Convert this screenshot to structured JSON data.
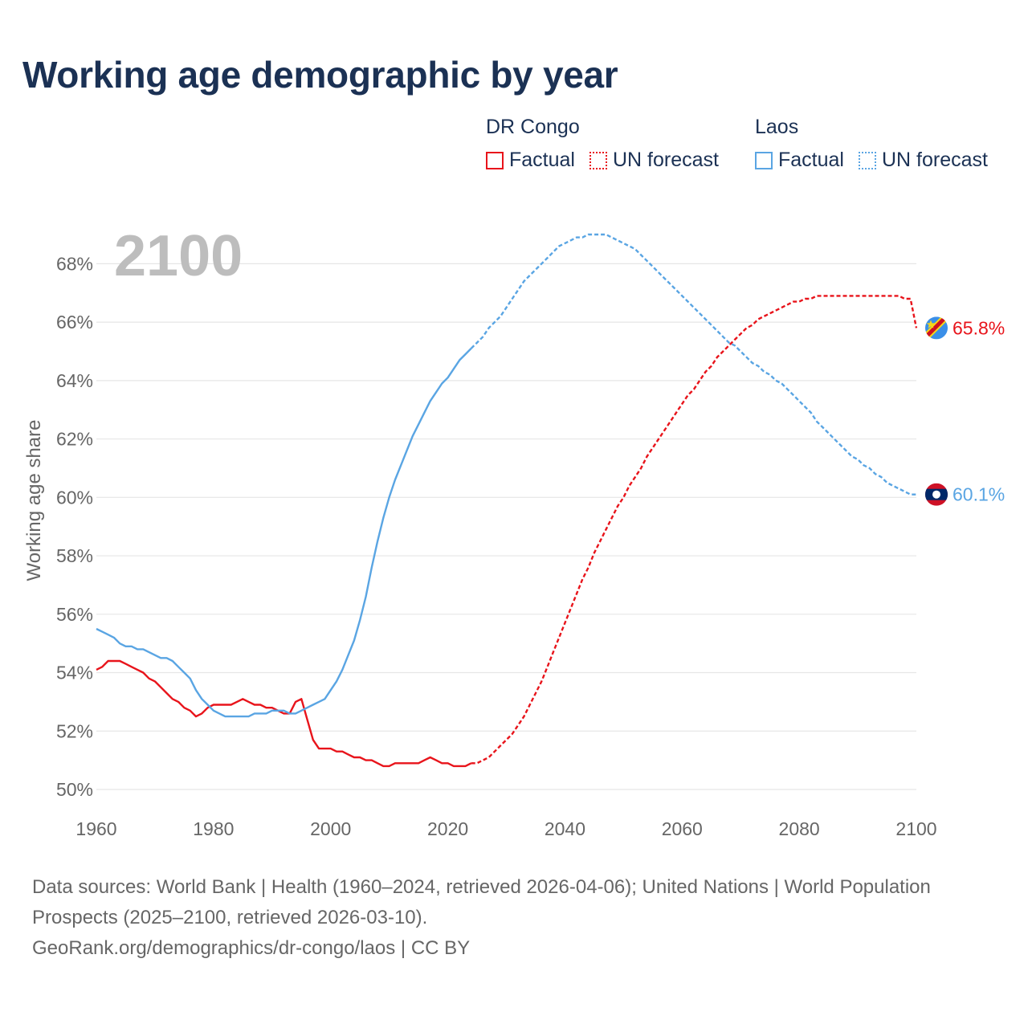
{
  "title": "Working age demographic by year",
  "year_overlay": "2100",
  "legend": {
    "groups": [
      {
        "name": "DR Congo",
        "factual_label": "Factual",
        "forecast_label": "UN forecast",
        "color": "#e8141b"
      },
      {
        "name": "Laos",
        "factual_label": "Factual",
        "forecast_label": "UN forecast",
        "color": "#5aa5e3"
      }
    ]
  },
  "footer": {
    "sources": "Data sources: World Bank | Health (1960–2024, retrieved 2026-04-06); United Nations | World Population Prospects (2025–2100, retrieved 2026-03-10).",
    "credit": "GeoRank.org/demographics/dr-congo/laos | CC BY"
  },
  "chart_data": {
    "type": "line",
    "title": "Working age demographic by year",
    "xlabel": "",
    "ylabel": "Working age share",
    "xlim": [
      1960,
      2100
    ],
    "ylim": [
      50,
      69
    ],
    "x_ticks": [
      1960,
      1980,
      2000,
      2020,
      2040,
      2060,
      2080,
      2100
    ],
    "y_ticks": [
      50,
      52,
      54,
      56,
      58,
      60,
      62,
      64,
      66,
      68
    ],
    "y_tick_suffix": "%",
    "grid": true,
    "factual_end_year": 2024,
    "series": [
      {
        "name": "DR Congo",
        "color": "#e8141b",
        "end_label": "65.8%",
        "points": [
          [
            1960,
            54.1
          ],
          [
            1961,
            54.2
          ],
          [
            1962,
            54.4
          ],
          [
            1963,
            54.4
          ],
          [
            1964,
            54.4
          ],
          [
            1965,
            54.3
          ],
          [
            1966,
            54.2
          ],
          [
            1967,
            54.1
          ],
          [
            1968,
            54.0
          ],
          [
            1969,
            53.8
          ],
          [
            1970,
            53.7
          ],
          [
            1971,
            53.5
          ],
          [
            1972,
            53.3
          ],
          [
            1973,
            53.1
          ],
          [
            1974,
            53.0
          ],
          [
            1975,
            52.8
          ],
          [
            1976,
            52.7
          ],
          [
            1977,
            52.5
          ],
          [
            1978,
            52.6
          ],
          [
            1979,
            52.8
          ],
          [
            1980,
            52.9
          ],
          [
            1981,
            52.9
          ],
          [
            1982,
            52.9
          ],
          [
            1983,
            52.9
          ],
          [
            1984,
            53.0
          ],
          [
            1985,
            53.1
          ],
          [
            1986,
            53.0
          ],
          [
            1987,
            52.9
          ],
          [
            1988,
            52.9
          ],
          [
            1989,
            52.8
          ],
          [
            1990,
            52.8
          ],
          [
            1991,
            52.7
          ],
          [
            1992,
            52.6
          ],
          [
            1993,
            52.6
          ],
          [
            1994,
            53.0
          ],
          [
            1995,
            53.1
          ],
          [
            1996,
            52.4
          ],
          [
            1997,
            51.7
          ],
          [
            1998,
            51.4
          ],
          [
            1999,
            51.4
          ],
          [
            2000,
            51.4
          ],
          [
            2001,
            51.3
          ],
          [
            2002,
            51.3
          ],
          [
            2003,
            51.2
          ],
          [
            2004,
            51.1
          ],
          [
            2005,
            51.1
          ],
          [
            2006,
            51.0
          ],
          [
            2007,
            51.0
          ],
          [
            2008,
            50.9
          ],
          [
            2009,
            50.8
          ],
          [
            2010,
            50.8
          ],
          [
            2011,
            50.9
          ],
          [
            2012,
            50.9
          ],
          [
            2013,
            50.9
          ],
          [
            2014,
            50.9
          ],
          [
            2015,
            50.9
          ],
          [
            2016,
            51.0
          ],
          [
            2017,
            51.1
          ],
          [
            2018,
            51.0
          ],
          [
            2019,
            50.9
          ],
          [
            2020,
            50.9
          ],
          [
            2021,
            50.8
          ],
          [
            2022,
            50.8
          ],
          [
            2023,
            50.8
          ],
          [
            2024,
            50.9
          ],
          [
            2025,
            50.9
          ],
          [
            2026,
            51.0
          ],
          [
            2027,
            51.1
          ],
          [
            2028,
            51.3
          ],
          [
            2029,
            51.5
          ],
          [
            2030,
            51.7
          ],
          [
            2031,
            51.9
          ],
          [
            2032,
            52.2
          ],
          [
            2033,
            52.5
          ],
          [
            2034,
            52.9
          ],
          [
            2035,
            53.3
          ],
          [
            2036,
            53.7
          ],
          [
            2037,
            54.2
          ],
          [
            2038,
            54.7
          ],
          [
            2039,
            55.2
          ],
          [
            2040,
            55.7
          ],
          [
            2041,
            56.2
          ],
          [
            2042,
            56.7
          ],
          [
            2043,
            57.2
          ],
          [
            2044,
            57.6
          ],
          [
            2045,
            58.1
          ],
          [
            2046,
            58.5
          ],
          [
            2047,
            58.9
          ],
          [
            2048,
            59.3
          ],
          [
            2049,
            59.7
          ],
          [
            2050,
            60.0
          ],
          [
            2051,
            60.4
          ],
          [
            2052,
            60.7
          ],
          [
            2053,
            61.0
          ],
          [
            2054,
            61.4
          ],
          [
            2055,
            61.7
          ],
          [
            2056,
            62.0
          ],
          [
            2057,
            62.3
          ],
          [
            2058,
            62.6
          ],
          [
            2059,
            62.9
          ],
          [
            2060,
            63.2
          ],
          [
            2061,
            63.5
          ],
          [
            2062,
            63.7
          ],
          [
            2063,
            64.0
          ],
          [
            2064,
            64.3
          ],
          [
            2065,
            64.5
          ],
          [
            2066,
            64.8
          ],
          [
            2067,
            65.0
          ],
          [
            2068,
            65.2
          ],
          [
            2069,
            65.4
          ],
          [
            2070,
            65.6
          ],
          [
            2071,
            65.8
          ],
          [
            2072,
            65.9
          ],
          [
            2073,
            66.1
          ],
          [
            2074,
            66.2
          ],
          [
            2075,
            66.3
          ],
          [
            2076,
            66.4
          ],
          [
            2077,
            66.5
          ],
          [
            2078,
            66.6
          ],
          [
            2079,
            66.7
          ],
          [
            2080,
            66.7
          ],
          [
            2081,
            66.8
          ],
          [
            2082,
            66.8
          ],
          [
            2083,
            66.9
          ],
          [
            2084,
            66.9
          ],
          [
            2085,
            66.9
          ],
          [
            2086,
            66.9
          ],
          [
            2087,
            66.9
          ],
          [
            2088,
            66.9
          ],
          [
            2089,
            66.9
          ],
          [
            2090,
            66.9
          ],
          [
            2091,
            66.9
          ],
          [
            2092,
            66.9
          ],
          [
            2093,
            66.9
          ],
          [
            2094,
            66.9
          ],
          [
            2095,
            66.9
          ],
          [
            2096,
            66.9
          ],
          [
            2097,
            66.9
          ],
          [
            2098,
            66.8
          ],
          [
            2099,
            66.8
          ],
          [
            2100,
            65.8
          ]
        ]
      },
      {
        "name": "Laos",
        "color": "#5aa5e3",
        "end_label": "60.1%",
        "points": [
          [
            1960,
            55.5
          ],
          [
            1961,
            55.4
          ],
          [
            1962,
            55.3
          ],
          [
            1963,
            55.2
          ],
          [
            1964,
            55.0
          ],
          [
            1965,
            54.9
          ],
          [
            1966,
            54.9
          ],
          [
            1967,
            54.8
          ],
          [
            1968,
            54.8
          ],
          [
            1969,
            54.7
          ],
          [
            1970,
            54.6
          ],
          [
            1971,
            54.5
          ],
          [
            1972,
            54.5
          ],
          [
            1973,
            54.4
          ],
          [
            1974,
            54.2
          ],
          [
            1975,
            54.0
          ],
          [
            1976,
            53.8
          ],
          [
            1977,
            53.4
          ],
          [
            1978,
            53.1
          ],
          [
            1979,
            52.9
          ],
          [
            1980,
            52.7
          ],
          [
            1981,
            52.6
          ],
          [
            1982,
            52.5
          ],
          [
            1983,
            52.5
          ],
          [
            1984,
            52.5
          ],
          [
            1985,
            52.5
          ],
          [
            1986,
            52.5
          ],
          [
            1987,
            52.6
          ],
          [
            1988,
            52.6
          ],
          [
            1989,
            52.6
          ],
          [
            1990,
            52.7
          ],
          [
            1991,
            52.7
          ],
          [
            1992,
            52.7
          ],
          [
            1993,
            52.6
          ],
          [
            1994,
            52.6
          ],
          [
            1995,
            52.7
          ],
          [
            1996,
            52.8
          ],
          [
            1997,
            52.9
          ],
          [
            1998,
            53.0
          ],
          [
            1999,
            53.1
          ],
          [
            2000,
            53.4
          ],
          [
            2001,
            53.7
          ],
          [
            2002,
            54.1
          ],
          [
            2003,
            54.6
          ],
          [
            2004,
            55.1
          ],
          [
            2005,
            55.8
          ],
          [
            2006,
            56.6
          ],
          [
            2007,
            57.6
          ],
          [
            2008,
            58.5
          ],
          [
            2009,
            59.3
          ],
          [
            2010,
            60.0
          ],
          [
            2011,
            60.6
          ],
          [
            2012,
            61.1
          ],
          [
            2013,
            61.6
          ],
          [
            2014,
            62.1
          ],
          [
            2015,
            62.5
          ],
          [
            2016,
            62.9
          ],
          [
            2017,
            63.3
          ],
          [
            2018,
            63.6
          ],
          [
            2019,
            63.9
          ],
          [
            2020,
            64.1
          ],
          [
            2021,
            64.4
          ],
          [
            2022,
            64.7
          ],
          [
            2023,
            64.9
          ],
          [
            2024,
            65.1
          ],
          [
            2025,
            65.3
          ],
          [
            2026,
            65.5
          ],
          [
            2027,
            65.8
          ],
          [
            2028,
            66.0
          ],
          [
            2029,
            66.2
          ],
          [
            2030,
            66.5
          ],
          [
            2031,
            66.8
          ],
          [
            2032,
            67.1
          ],
          [
            2033,
            67.4
          ],
          [
            2034,
            67.6
          ],
          [
            2035,
            67.8
          ],
          [
            2036,
            68.0
          ],
          [
            2037,
            68.2
          ],
          [
            2038,
            68.4
          ],
          [
            2039,
            68.6
          ],
          [
            2040,
            68.7
          ],
          [
            2041,
            68.8
          ],
          [
            2042,
            68.9
          ],
          [
            2043,
            68.9
          ],
          [
            2044,
            69.0
          ],
          [
            2045,
            69.0
          ],
          [
            2046,
            69.0
          ],
          [
            2047,
            69.0
          ],
          [
            2048,
            68.9
          ],
          [
            2049,
            68.8
          ],
          [
            2050,
            68.7
          ],
          [
            2051,
            68.6
          ],
          [
            2052,
            68.5
          ],
          [
            2053,
            68.3
          ],
          [
            2054,
            68.1
          ],
          [
            2055,
            67.9
          ],
          [
            2056,
            67.7
          ],
          [
            2057,
            67.5
          ],
          [
            2058,
            67.3
          ],
          [
            2059,
            67.1
          ],
          [
            2060,
            66.9
          ],
          [
            2061,
            66.7
          ],
          [
            2062,
            66.5
          ],
          [
            2063,
            66.3
          ],
          [
            2064,
            66.1
          ],
          [
            2065,
            65.9
          ],
          [
            2066,
            65.7
          ],
          [
            2067,
            65.5
          ],
          [
            2068,
            65.3
          ],
          [
            2069,
            65.2
          ],
          [
            2070,
            65.0
          ],
          [
            2071,
            64.8
          ],
          [
            2072,
            64.6
          ],
          [
            2073,
            64.5
          ],
          [
            2074,
            64.3
          ],
          [
            2075,
            64.2
          ],
          [
            2076,
            64.0
          ],
          [
            2077,
            63.9
          ],
          [
            2078,
            63.7
          ],
          [
            2079,
            63.5
          ],
          [
            2080,
            63.3
          ],
          [
            2081,
            63.1
          ],
          [
            2082,
            62.9
          ],
          [
            2083,
            62.6
          ],
          [
            2084,
            62.4
          ],
          [
            2085,
            62.2
          ],
          [
            2086,
            62.0
          ],
          [
            2087,
            61.8
          ],
          [
            2088,
            61.6
          ],
          [
            2089,
            61.4
          ],
          [
            2090,
            61.3
          ],
          [
            2091,
            61.1
          ],
          [
            2092,
            61.0
          ],
          [
            2093,
            60.8
          ],
          [
            2094,
            60.7
          ],
          [
            2095,
            60.5
          ],
          [
            2096,
            60.4
          ],
          [
            2097,
            60.3
          ],
          [
            2098,
            60.2
          ],
          [
            2099,
            60.1
          ],
          [
            2100,
            60.1
          ]
        ]
      }
    ]
  }
}
